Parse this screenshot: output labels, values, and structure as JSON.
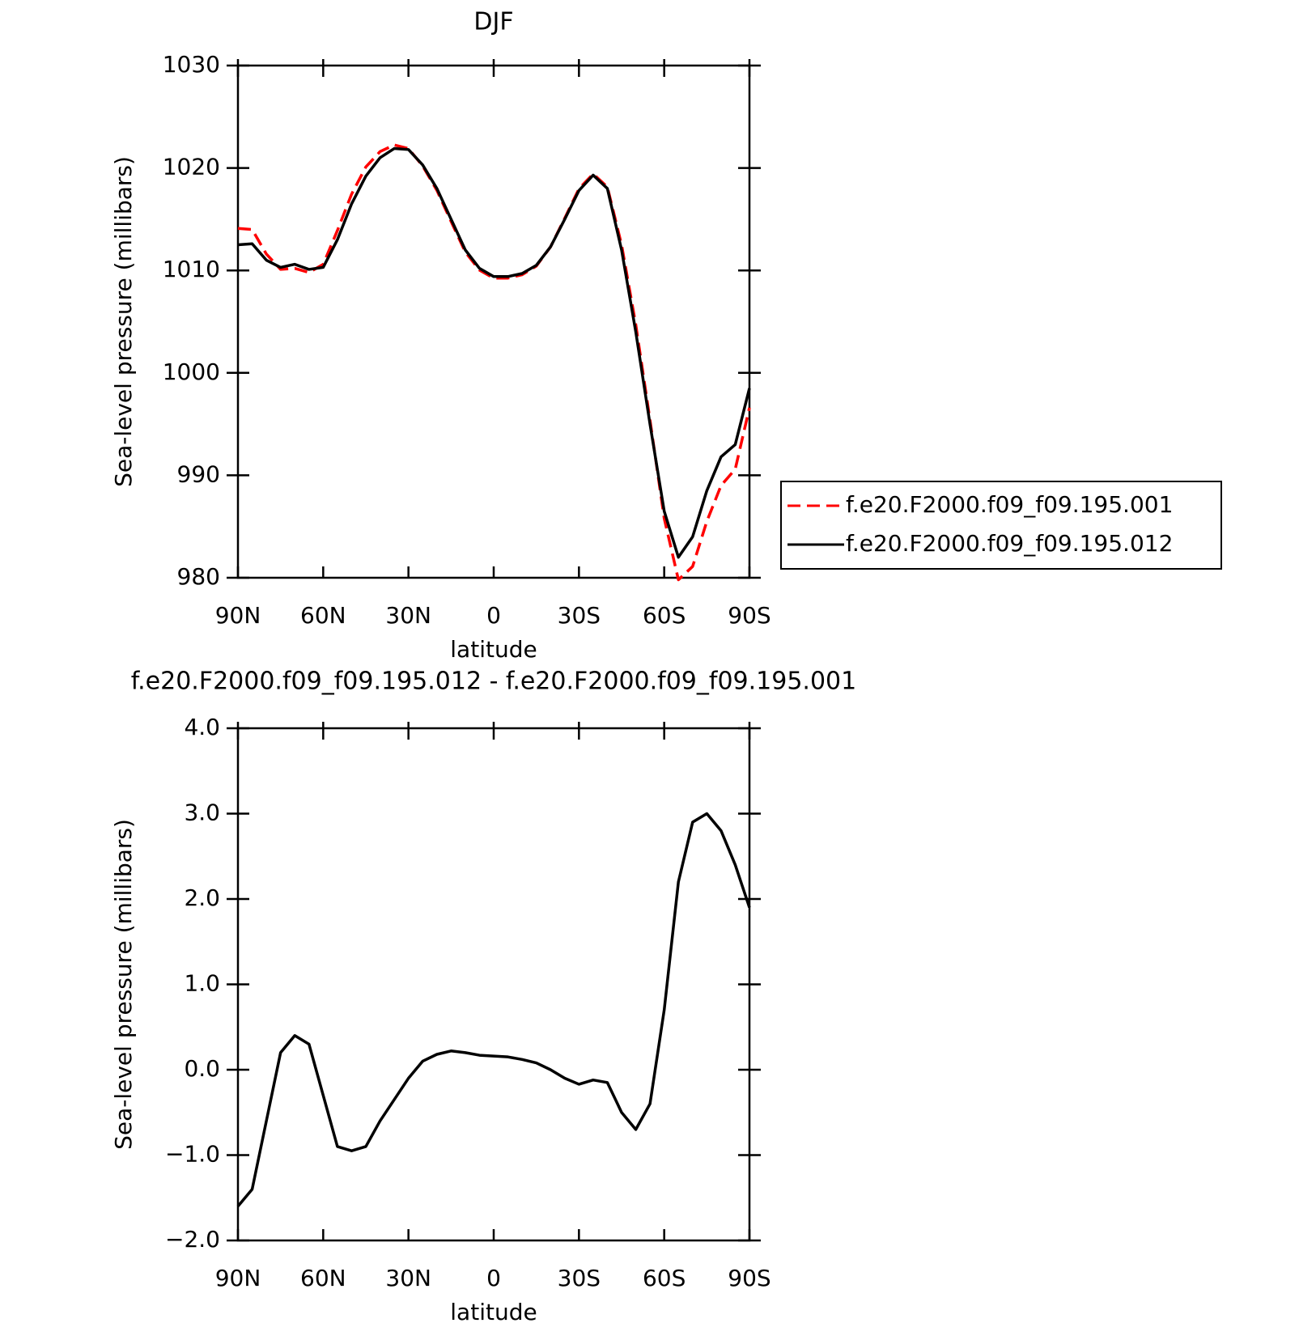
{
  "chart_data": [
    {
      "type": "line",
      "title": "DJF",
      "xlabel": "latitude",
      "ylabel": "Sea-level pressure (millibars)",
      "x": [
        90,
        85,
        80,
        75,
        70,
        65,
        60,
        55,
        50,
        45,
        40,
        35,
        30,
        25,
        20,
        15,
        10,
        5,
        0,
        -5,
        -10,
        -15,
        -20,
        -25,
        -30,
        -35,
        -40,
        -45,
        -50,
        -55,
        -60,
        -65,
        -70,
        -75,
        -80,
        -85,
        -90
      ],
      "xlim": [
        90,
        -90
      ],
      "xticks": [
        {
          "value": 90,
          "label": "90N"
        },
        {
          "value": 60,
          "label": "60N"
        },
        {
          "value": 30,
          "label": "30N"
        },
        0,
        {
          "value": -30,
          "label": "30S"
        },
        {
          "value": -60,
          "label": "60S"
        },
        {
          "value": -90,
          "label": "90S"
        }
      ],
      "ylim": [
        980,
        1030
      ],
      "yticks": [
        980,
        990,
        1000,
        1010,
        1020,
        1030
      ],
      "legend": "right",
      "series": [
        {
          "name": "f.e20.F2000.f09_f09.195.001",
          "color": "#ff0000",
          "dash": "dashed",
          "values": [
            1014.1,
            1014.0,
            1011.6,
            1010.1,
            1010.2,
            1009.8,
            1010.6,
            1013.9,
            1017.45,
            1020.1,
            1021.6,
            1022.25,
            1021.9,
            1020.2,
            1017.82,
            1014.78,
            1011.8,
            1010.03,
            1009.24,
            1009.25,
            1009.58,
            1010.42,
            1012.3,
            1015.1,
            1017.97,
            1019.42,
            1018.15,
            1012.5,
            1004.7,
            995.4,
            985.8,
            979.8,
            981.1,
            985.5,
            989.0,
            990.6,
            996.6
          ]
        },
        {
          "name": "f.e20.F2000.f09_f09.195.012",
          "color": "#000000",
          "dash": "solid",
          "values": [
            1012.5,
            1012.6,
            1011.0,
            1010.3,
            1010.6,
            1010.1,
            1010.3,
            1013.0,
            1016.5,
            1019.2,
            1021.0,
            1021.9,
            1021.8,
            1020.3,
            1018.0,
            1015.0,
            1012.0,
            1010.2,
            1009.4,
            1009.4,
            1009.7,
            1010.5,
            1012.3,
            1015.0,
            1017.8,
            1019.3,
            1018.0,
            1012.0,
            1004.0,
            995.0,
            986.5,
            982.0,
            984.0,
            988.5,
            991.8,
            993.0,
            998.5
          ]
        }
      ]
    },
    {
      "type": "line",
      "title": "f.e20.F2000.f09_f09.195.012 - f.e20.F2000.f09_f09.195.001",
      "xlabel": "latitude",
      "ylabel": "Sea-level pressure (millibars)",
      "x": [
        90,
        85,
        80,
        75,
        70,
        65,
        60,
        55,
        50,
        45,
        40,
        35,
        30,
        25,
        20,
        15,
        10,
        5,
        0,
        -5,
        -10,
        -15,
        -20,
        -25,
        -30,
        -35,
        -40,
        -45,
        -50,
        -55,
        -60,
        -65,
        -70,
        -75,
        -80,
        -85,
        -90
      ],
      "xlim": [
        90,
        -90
      ],
      "xticks": [
        {
          "value": 90,
          "label": "90N"
        },
        {
          "value": 60,
          "label": "60N"
        },
        {
          "value": 30,
          "label": "30N"
        },
        0,
        {
          "value": -30,
          "label": "30S"
        },
        {
          "value": -60,
          "label": "60S"
        },
        {
          "value": -90,
          "label": "90S"
        }
      ],
      "ylim": [
        -2,
        4
      ],
      "yticks": [
        {
          "value": -2,
          "label": "−2.0"
        },
        {
          "value": -1,
          "label": "−1.0"
        },
        {
          "value": 0,
          "label": "0.0"
        },
        {
          "value": 1,
          "label": "1.0"
        },
        {
          "value": 2,
          "label": "2.0"
        },
        {
          "value": 3,
          "label": "3.0"
        },
        {
          "value": 4,
          "label": "4.0"
        }
      ],
      "series": [
        {
          "color": "#000000",
          "dash": "solid",
          "values": [
            -1.6,
            -1.4,
            -0.6,
            0.2,
            0.4,
            0.3,
            -0.3,
            -0.9,
            -0.95,
            -0.9,
            -0.6,
            -0.35,
            -0.1,
            0.1,
            0.18,
            0.22,
            0.2,
            0.17,
            0.16,
            0.15,
            0.12,
            0.08,
            0,
            -0.1,
            -0.17,
            -0.12,
            -0.15,
            -0.5,
            -0.7,
            -0.4,
            0.7,
            2.2,
            2.9,
            3.0,
            2.8,
            2.4,
            1.9
          ]
        }
      ]
    }
  ]
}
